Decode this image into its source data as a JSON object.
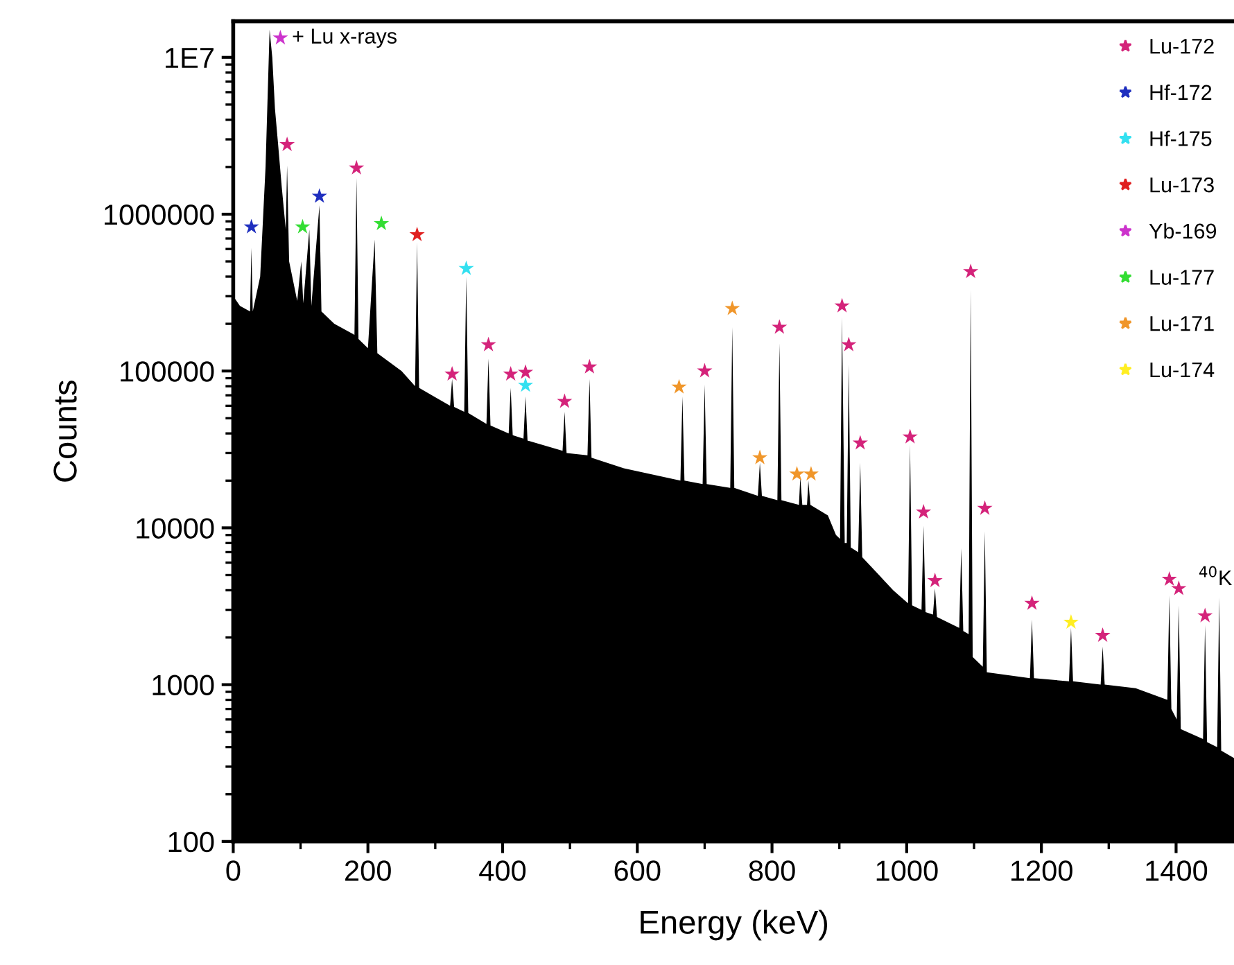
{
  "chart_data": {
    "type": "area",
    "xlabel": "Energy (keV)",
    "ylabel": "Counts",
    "log": "y",
    "xlim": [
      0,
      1486
    ],
    "xticks": [
      0,
      200,
      400,
      600,
      800,
      1000,
      1200,
      1400
    ],
    "ylim": [
      100,
      17000000
    ],
    "yticks": [
      100,
      1000,
      10000,
      100000,
      1000000,
      {
        "value": 10000000,
        "label": "1E7"
      }
    ],
    "grid": false,
    "legend": "top right",
    "annotations": [
      {
        "text": "+ Lu x-rays",
        "x": 70,
        "y": 13300000
      },
      {
        "text": "$^{40}$K",
        "x": 1464,
        "y": 3600
      }
    ],
    "series": [
      {
        "color": "#000000",
        "x": [
          0,
          10,
          25,
          27,
          29,
          40,
          48,
          54,
          58,
          62,
          66,
          72,
          78,
          80,
          83,
          95,
          101,
          104,
          113,
          116,
          128,
          131,
          150,
          180,
          183,
          186,
          200,
          210,
          214,
          250,
          270,
          273,
          276,
          300,
          322,
          325,
          328,
          343,
          346,
          349,
          376,
          379,
          382,
          409,
          412,
          415,
          431,
          434,
          437,
          489,
          492,
          495,
          526,
          529,
          532,
          580,
          664,
          667,
          670,
          697,
          700,
          703,
          738,
          741,
          744,
          779,
          782,
          785,
          808,
          811,
          814,
          840,
          842,
          845,
          852,
          854,
          857,
          883,
          895,
          901,
          904,
          908,
          911,
          914,
          917,
          928,
          931,
          934,
          980,
          1002,
          1005,
          1008,
          1022,
          1025,
          1028,
          1039,
          1042,
          1045,
          1078,
          1081,
          1084,
          1092,
          1095,
          1098,
          1113,
          1116,
          1119,
          1183,
          1186,
          1189,
          1241,
          1244,
          1247,
          1288,
          1291,
          1294,
          1340,
          1387,
          1390,
          1393,
          1401,
          1404,
          1407,
          1440,
          1443,
          1446,
          1461,
          1464,
          1467,
          1486
        ],
        "values": [
          300000,
          260000,
          240000,
          610000,
          240000,
          400000,
          2000000,
          15000000,
          10000000,
          4700000,
          3000000,
          1500000,
          800000,
          2050000,
          500000,
          280000,
          500000,
          270000,
          800000,
          260000,
          1140000,
          240000,
          200000,
          170000,
          1700000,
          160000,
          140000,
          690000,
          130000,
          100000,
          80000,
          660000,
          78000,
          68000,
          60000,
          89000,
          59000,
          55000,
          400000,
          54000,
          46000,
          120000,
          45000,
          40000,
          78000,
          39000,
          37000,
          69000,
          36000,
          31000,
          55000,
          30000,
          29000,
          89000,
          28000,
          24000,
          20000,
          69000,
          20000,
          19000,
          82000,
          19000,
          18000,
          190000,
          18000,
          16000,
          26000,
          16000,
          15000,
          150000,
          15000,
          14000,
          21000,
          14000,
          14000,
          20000,
          14000,
          12000,
          9000,
          8500,
          220000,
          8000,
          8000,
          110000,
          7500,
          7000,
          26000,
          6500,
          4000,
          3300,
          34000,
          3200,
          3000,
          10300,
          2900,
          2800,
          4100,
          2700,
          2300,
          7400,
          2200,
          2100,
          330000,
          1500,
          1300,
          9500,
          1200,
          1100,
          2600,
          1100,
          1050,
          2300,
          1050,
          1000,
          1750,
          1000,
          950,
          800,
          3700,
          700,
          600,
          3200,
          520,
          450,
          2400,
          430,
          400,
          3600,
          380,
          340
        ]
      },
      {
        "type": "scatter",
        "marker": "star",
        "name": "Lu-172",
        "color": "#d4237a",
        "x": [
          80,
          183,
          325,
          379,
          412,
          434,
          492,
          529,
          700,
          811,
          904,
          914,
          1095,
          931,
          1005,
          1025,
          1042,
          1116,
          1186,
          1291,
          1390,
          1404,
          1443
        ],
        "values": [
          2780000,
          1970000,
          95500,
          147000,
          95500,
          98000,
          64000,
          106000,
          100000,
          190000,
          260000,
          147000,
          430000,
          34700,
          38000,
          12600,
          4600,
          13300,
          3300,
          2060,
          4700,
          4100,
          2750
        ]
      },
      {
        "type": "scatter",
        "marker": "star",
        "name": "Hf-172",
        "color": "#1f2fbf",
        "x": [
          27,
          128
        ],
        "values": [
          830000,
          1300000
        ]
      },
      {
        "type": "scatter",
        "marker": "star",
        "name": "Hf-175",
        "color": "#33e0f0",
        "x": [
          346,
          434
        ],
        "values": [
          450000,
          81000
        ]
      },
      {
        "type": "scatter",
        "marker": "star",
        "name": "Lu-173",
        "color": "#e02020",
        "x": [
          273
        ],
        "values": [
          740000
        ]
      },
      {
        "type": "scatter",
        "marker": "star",
        "name": "Yb-169",
        "color": "#cc33cc",
        "x": [
          70
        ],
        "values": [
          13300000
        ]
      },
      {
        "type": "scatter",
        "marker": "star",
        "name": "Lu-177",
        "color": "#33dd33",
        "x": [
          103,
          220
        ],
        "values": [
          830000,
          870000
        ]
      },
      {
        "type": "scatter",
        "marker": "star",
        "name": "Lu-171",
        "color": "#f0962a",
        "x": [
          662,
          741,
          782,
          837,
          858
        ],
        "values": [
          79000,
          250000,
          28000,
          22000,
          22000
        ]
      },
      {
        "type": "scatter",
        "marker": "star",
        "name": "Lu-174",
        "color": "#ffee22",
        "x": [
          1244
        ],
        "values": [
          2500
        ]
      }
    ]
  }
}
